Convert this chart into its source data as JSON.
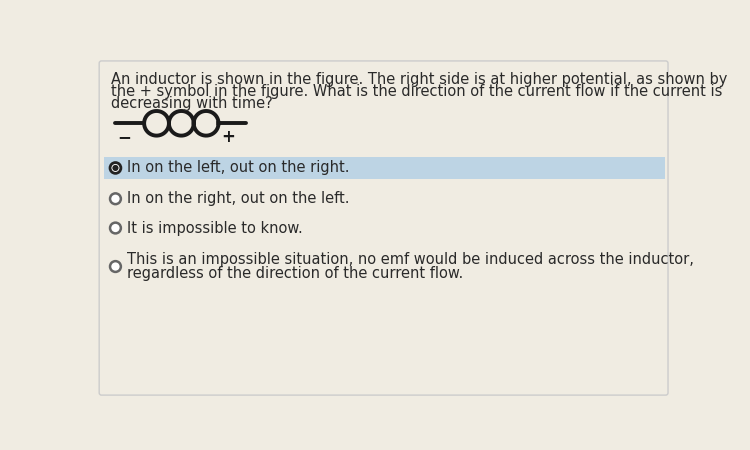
{
  "bg_color": "#f0ece2",
  "card_bg": "#f0ece2",
  "card_edge": "#cccccc",
  "highlight_bg": "#bdd4e4",
  "question_text_line1": "An inductor is shown in the figure. The right side is at higher potential, as shown by",
  "question_text_line2": "the + symbol in the figure. What is the direction of the current flow if the current is",
  "question_text_line3": "decreasing with time?",
  "options": [
    "In on the left, out on the right.",
    "In on the right, out on the left.",
    "It is impossible to know.",
    "This is an impossible situation, no emf would be induced across the inductor,\nregardless of the direction of the current flow."
  ],
  "selected_index": 0,
  "text_color": "#2a2a2a",
  "font_size_q": 10.5,
  "font_size_opt": 10.5,
  "radio_edge_color": "#666666",
  "selected_dot_color": "#222222",
  "inductor_color": "#1a1a1a",
  "minus_color": "#1a1a1a",
  "plus_color": "#1a1a1a"
}
